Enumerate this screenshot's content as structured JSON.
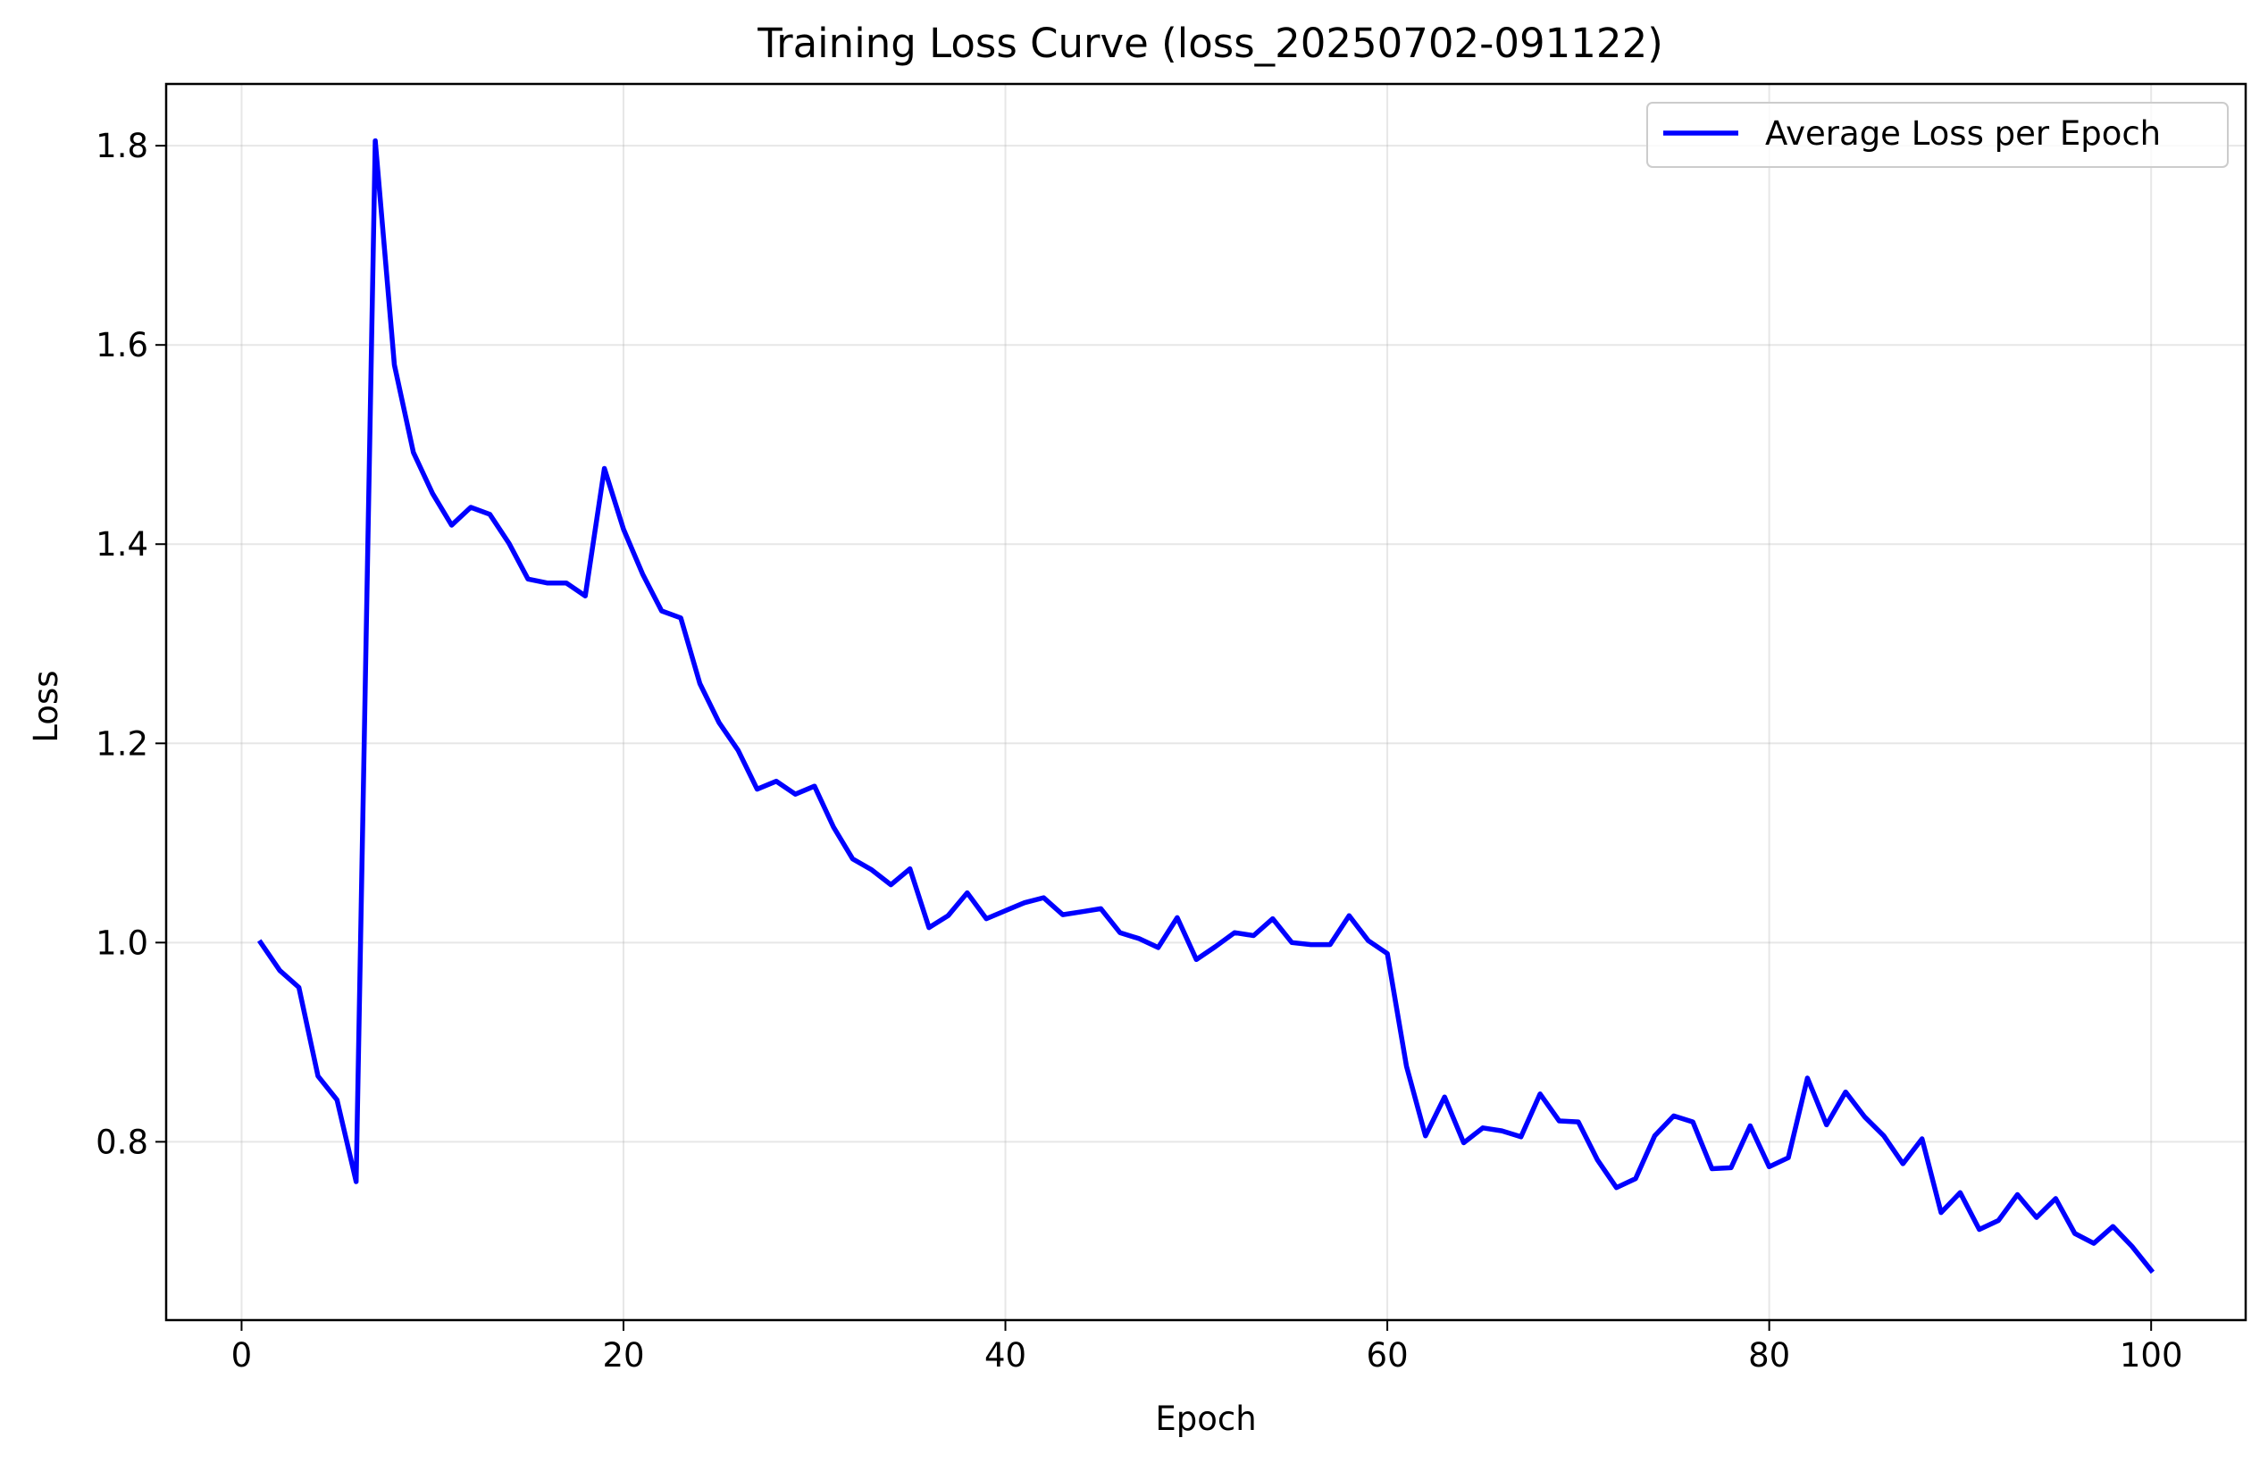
{
  "colors": {
    "line": "#0000ff",
    "background": "#ffffff",
    "axes": "#000000",
    "grid": "#b0b0b0"
  },
  "chart_data": {
    "type": "line",
    "title": "Training Loss Curve (loss_20250702-091122)",
    "xlabel": "Epoch",
    "ylabel": "Loss",
    "xlim": [
      -3.95,
      104.95
    ],
    "ylim": [
      0.621,
      1.862
    ],
    "xticks": [
      0,
      20,
      40,
      60,
      80,
      100
    ],
    "xtick_labels": [
      "0",
      "20",
      "40",
      "60",
      "80",
      "100"
    ],
    "yticks": [
      0.8,
      1.0,
      1.2,
      1.4,
      1.6,
      1.8
    ],
    "ytick_labels": [
      "0.8",
      "1.0",
      "1.2",
      "1.4",
      "1.6",
      "1.8"
    ],
    "grid": true,
    "legend_position": "top-right",
    "series": [
      {
        "name": "Average Loss per Epoch",
        "color": "#0000ff",
        "x": [
          1,
          2,
          3,
          4,
          5,
          6,
          7,
          8,
          9,
          10,
          11,
          12,
          13,
          14,
          15,
          16,
          17,
          18,
          19,
          20,
          21,
          22,
          23,
          24,
          25,
          26,
          27,
          28,
          29,
          30,
          31,
          32,
          33,
          34,
          35,
          36,
          37,
          38,
          39,
          40,
          41,
          42,
          43,
          44,
          45,
          46,
          47,
          48,
          49,
          50,
          51,
          52,
          53,
          54,
          55,
          56,
          57,
          58,
          59,
          60,
          61,
          62,
          63,
          64,
          65,
          66,
          67,
          68,
          69,
          70,
          71,
          72,
          73,
          74,
          75,
          76,
          77,
          78,
          79,
          80,
          81,
          82,
          83,
          84,
          85,
          86,
          87,
          88,
          89,
          90,
          91,
          92,
          93,
          94,
          95,
          96,
          97,
          98,
          99,
          100
        ],
        "values": [
          1.0,
          0.972,
          0.955,
          0.866,
          0.842,
          0.76,
          1.805,
          1.58,
          1.492,
          1.451,
          1.419,
          1.437,
          1.43,
          1.401,
          1.365,
          1.361,
          1.361,
          1.348,
          1.476,
          1.415,
          1.37,
          1.333,
          1.326,
          1.26,
          1.221,
          1.193,
          1.154,
          1.162,
          1.149,
          1.157,
          1.116,
          1.084,
          1.073,
          1.058,
          1.074,
          1.015,
          1.027,
          1.05,
          1.024,
          1.032,
          1.04,
          1.045,
          1.028,
          1.031,
          1.034,
          1.01,
          1.004,
          0.995,
          1.025,
          0.983,
          0.996,
          1.01,
          1.007,
          1.024,
          1.0,
          0.998,
          0.998,
          1.027,
          1.002,
          0.989,
          0.876,
          0.806,
          0.845,
          0.799,
          0.814,
          0.811,
          0.805,
          0.848,
          0.821,
          0.82,
          0.782,
          0.754,
          0.763,
          0.806,
          0.826,
          0.82,
          0.773,
          0.774,
          0.816,
          0.775,
          0.784,
          0.864,
          0.817,
          0.85,
          0.825,
          0.806,
          0.778,
          0.803,
          0.729,
          0.749,
          0.712,
          0.721,
          0.747,
          0.724,
          0.743,
          0.708,
          0.698,
          0.715,
          0.695,
          0.671
        ]
      }
    ]
  }
}
